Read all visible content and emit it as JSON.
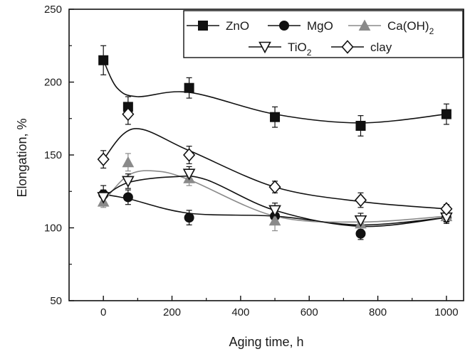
{
  "chart_data": {
    "type": "scatter",
    "xlabel": "Aging time,  h",
    "ylabel": "Elongation,   %",
    "xlim": [
      -100,
      1050
    ],
    "ylim": [
      50,
      250
    ],
    "xticks": [
      0,
      200,
      400,
      600,
      800,
      1000
    ],
    "yticks": [
      50,
      100,
      150,
      200,
      250
    ],
    "grid": false,
    "legend_position": "top-right",
    "series": [
      {
        "name": "ZnO",
        "marker": "filled-square",
        "color": "#111111",
        "x": [
          0,
          72,
          250,
          500,
          750,
          1000
        ],
        "y": [
          215,
          183,
          196,
          176,
          170,
          178
        ],
        "err": [
          10,
          7,
          7,
          7,
          7,
          7
        ],
        "curve": [
          [
            0,
            215
          ],
          [
            40,
            196
          ],
          [
            100,
            190
          ],
          [
            250,
            193
          ],
          [
            500,
            178
          ],
          [
            750,
            172
          ],
          [
            1000,
            178
          ]
        ]
      },
      {
        "name": "MgO",
        "marker": "filled-circle",
        "color": "#111111",
        "x": [
          0,
          72,
          250,
          500,
          750,
          1000
        ],
        "y": [
          123,
          121,
          107,
          108,
          96,
          107
        ],
        "err": [
          6,
          5,
          5,
          4,
          4,
          4
        ],
        "curve": [
          [
            0,
            123
          ],
          [
            72,
            120
          ],
          [
            250,
            110
          ],
          [
            500,
            108
          ],
          [
            750,
            102
          ],
          [
            1000,
            107
          ]
        ]
      },
      {
        "name": "Ca(OH)",
        "name_sub": "2",
        "marker": "filled-triangle",
        "color": "#8a8a8a",
        "x": [
          0,
          72,
          250,
          500,
          750,
          1000
        ],
        "y": [
          118,
          145,
          134,
          105,
          103,
          108
        ],
        "err": [
          4,
          6,
          5,
          7,
          4,
          3
        ],
        "curve": [
          [
            0,
            118
          ],
          [
            72,
            136
          ],
          [
            150,
            139
          ],
          [
            250,
            133
          ],
          [
            500,
            108
          ],
          [
            750,
            104
          ],
          [
            1000,
            108
          ]
        ]
      },
      {
        "name": "TiO",
        "name_sub": "2",
        "marker": "open-triangle-down",
        "color": "#111111",
        "x": [
          0,
          72,
          250,
          500,
          750,
          1000
        ],
        "y": [
          121,
          132,
          137,
          112,
          105,
          107
        ],
        "err": [
          5,
          5,
          5,
          5,
          5,
          3
        ],
        "curve": [
          [
            0,
            121
          ],
          [
            72,
            131
          ],
          [
            200,
            135
          ],
          [
            300,
            133
          ],
          [
            500,
            112
          ],
          [
            750,
            101
          ],
          [
            1000,
            107
          ]
        ]
      },
      {
        "name": "clay",
        "marker": "open-diamond",
        "color": "#111111",
        "x": [
          0,
          72,
          250,
          500,
          750,
          1000
        ],
        "y": [
          147,
          178,
          150,
          128,
          119,
          113
        ],
        "err": [
          6,
          7,
          6,
          4,
          5,
          3
        ],
        "curve": [
          [
            0,
            147
          ],
          [
            90,
            168
          ],
          [
            250,
            153
          ],
          [
            500,
            128
          ],
          [
            750,
            118
          ],
          [
            1000,
            113
          ]
        ]
      }
    ]
  }
}
